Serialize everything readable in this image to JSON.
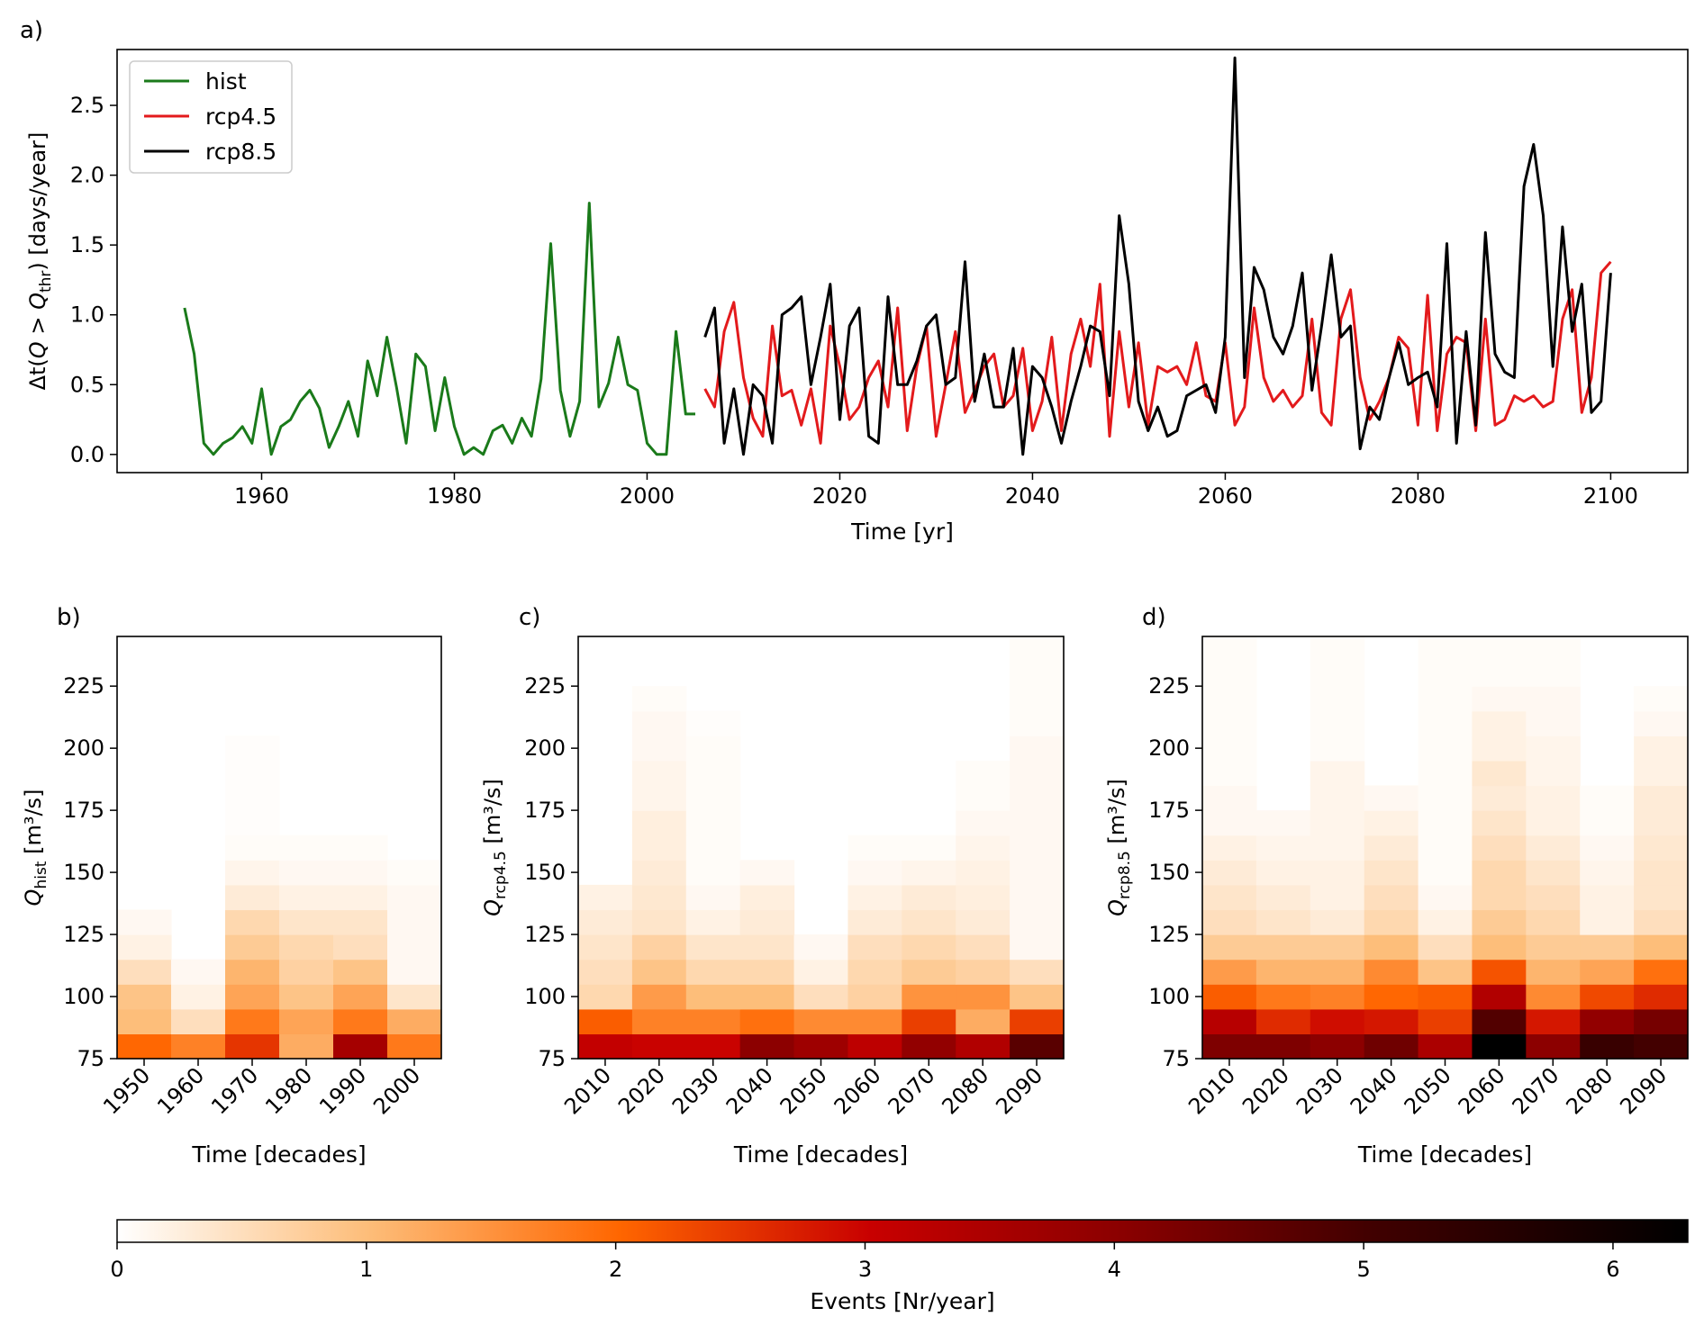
{
  "panel_labels": {
    "a": "a)",
    "b": "b)",
    "c": "c)",
    "d": "d)"
  },
  "line_chart": {
    "ylabel": "Δt(Q > Q_thr) [days/year]",
    "xlabel": "Time [yr]",
    "x_ticks": [
      1960,
      1980,
      2000,
      2020,
      2040,
      2060,
      2080,
      2100
    ],
    "y_ticks": [
      "0.0",
      "0.5",
      "1.0",
      "1.5",
      "2.0",
      "2.5"
    ]
  },
  "heatmaps": {
    "ylabel_main": "Q",
    "ylabel_unit": "[m³/s]",
    "y_ticks": [
      "75",
      "100",
      "125",
      "150",
      "175",
      "200",
      "225"
    ],
    "xlabel": "Time [decades]"
  },
  "colorbar": {
    "label": "Events [Nr/year]",
    "ticks": [
      "0",
      "1",
      "2",
      "3",
      "4",
      "5",
      "6"
    ],
    "max": 6.3
  },
  "colors": {
    "hist": "#1a7a1a",
    "rcp45": "#e31a1c",
    "rcp85": "#000000"
  },
  "chart_data": [
    {
      "type": "line",
      "xlabel": "Time [yr]",
      "ylabel": "Δt(Q > Q_thr) [days/year]",
      "xlim": [
        1945,
        2108
      ],
      "ylim": [
        -0.13,
        2.9
      ],
      "legend_position": "top-left",
      "series": [
        {
          "name": "hist",
          "x": [
            1952,
            1953,
            1954,
            1955,
            1956,
            1957,
            1958,
            1959,
            1960,
            1961,
            1962,
            1963,
            1964,
            1965,
            1966,
            1967,
            1968,
            1969,
            1970,
            1971,
            1972,
            1973,
            1974,
            1975,
            1976,
            1977,
            1978,
            1979,
            1980,
            1981,
            1982,
            1983,
            1984,
            1985,
            1986,
            1987,
            1988,
            1989,
            1990,
            1991,
            1992,
            1993,
            1994,
            1995,
            1996,
            1997,
            1998,
            1999,
            2000,
            2001,
            2002,
            2003,
            2004,
            2005
          ],
          "y": [
            1.05,
            0.72,
            0.08,
            0.0,
            0.08,
            0.12,
            0.2,
            0.08,
            0.47,
            0.0,
            0.2,
            0.25,
            0.38,
            0.46,
            0.33,
            0.05,
            0.2,
            0.38,
            0.13,
            0.67,
            0.42,
            0.84,
            0.48,
            0.08,
            0.72,
            0.63,
            0.17,
            0.55,
            0.2,
            0.0,
            0.05,
            0.0,
            0.17,
            0.21,
            0.08,
            0.26,
            0.13,
            0.54,
            1.51,
            0.46,
            0.13,
            0.38,
            1.8,
            0.34,
            0.51,
            0.84,
            0.5,
            0.46,
            0.08,
            0.0,
            0.0,
            0.88,
            0.29,
            0.29
          ]
        },
        {
          "name": "rcp4.5",
          "x": [
            2006,
            2007,
            2008,
            2009,
            2010,
            2011,
            2012,
            2013,
            2014,
            2015,
            2016,
            2017,
            2018,
            2019,
            2020,
            2021,
            2022,
            2023,
            2024,
            2025,
            2026,
            2027,
            2028,
            2029,
            2030,
            2031,
            2032,
            2033,
            2034,
            2035,
            2036,
            2037,
            2038,
            2039,
            2040,
            2041,
            2042,
            2043,
            2044,
            2045,
            2046,
            2047,
            2048,
            2049,
            2050,
            2051,
            2052,
            2053,
            2054,
            2055,
            2056,
            2057,
            2058,
            2059,
            2060,
            2061,
            2062,
            2063,
            2064,
            2065,
            2066,
            2067,
            2068,
            2069,
            2070,
            2071,
            2072,
            2073,
            2074,
            2075,
            2076,
            2077,
            2078,
            2079,
            2080,
            2081,
            2082,
            2083,
            2084,
            2085,
            2086,
            2087,
            2088,
            2089,
            2090,
            2091,
            2092,
            2093,
            2094,
            2095,
            2096,
            2097,
            2098,
            2099,
            2100
          ],
          "y": [
            0.47,
            0.34,
            0.88,
            1.09,
            0.55,
            0.26,
            0.13,
            0.92,
            0.42,
            0.46,
            0.21,
            0.47,
            0.08,
            0.92,
            0.63,
            0.25,
            0.34,
            0.55,
            0.67,
            0.34,
            1.05,
            0.17,
            0.63,
            0.92,
            0.13,
            0.5,
            0.88,
            0.3,
            0.46,
            0.63,
            0.72,
            0.34,
            0.42,
            0.76,
            0.17,
            0.38,
            0.84,
            0.17,
            0.72,
            0.97,
            0.63,
            1.22,
            0.13,
            0.88,
            0.34,
            0.8,
            0.21,
            0.63,
            0.59,
            0.63,
            0.5,
            0.8,
            0.42,
            0.38,
            0.8,
            0.21,
            0.34,
            1.05,
            0.55,
            0.38,
            0.46,
            0.34,
            0.42,
            0.97,
            0.3,
            0.21,
            0.97,
            1.18,
            0.55,
            0.25,
            0.38,
            0.55,
            0.84,
            0.76,
            0.21,
            1.14,
            0.17,
            0.72,
            0.84,
            0.8,
            0.17,
            0.97,
            0.21,
            0.25,
            0.42,
            0.38,
            0.42,
            0.34,
            0.38,
            0.97,
            1.18,
            0.3,
            0.55,
            1.3,
            1.38
          ]
        },
        {
          "name": "rcp8.5",
          "x": [
            2006,
            2007,
            2008,
            2009,
            2010,
            2011,
            2012,
            2013,
            2014,
            2015,
            2016,
            2017,
            2018,
            2019,
            2020,
            2021,
            2022,
            2023,
            2024,
            2025,
            2026,
            2027,
            2028,
            2029,
            2030,
            2031,
            2032,
            2033,
            2034,
            2035,
            2036,
            2037,
            2038,
            2039,
            2040,
            2041,
            2042,
            2043,
            2044,
            2045,
            2046,
            2047,
            2048,
            2049,
            2050,
            2051,
            2052,
            2053,
            2054,
            2055,
            2056,
            2057,
            2058,
            2059,
            2060,
            2061,
            2062,
            2063,
            2064,
            2065,
            2066,
            2067,
            2068,
            2069,
            2070,
            2071,
            2072,
            2073,
            2074,
            2075,
            2076,
            2077,
            2078,
            2079,
            2080,
            2081,
            2082,
            2083,
            2084,
            2085,
            2086,
            2087,
            2088,
            2089,
            2090,
            2091,
            2092,
            2093,
            2094,
            2095,
            2096,
            2097,
            2098,
            2099,
            2100
          ],
          "y": [
            0.84,
            1.05,
            0.08,
            0.47,
            0.0,
            0.5,
            0.42,
            0.08,
            1.0,
            1.05,
            1.13,
            0.5,
            0.84,
            1.22,
            0.25,
            0.92,
            1.05,
            0.13,
            0.08,
            1.13,
            0.5,
            0.5,
            0.67,
            0.92,
            1.0,
            0.5,
            0.55,
            1.38,
            0.38,
            0.72,
            0.34,
            0.34,
            0.76,
            0.0,
            0.63,
            0.55,
            0.34,
            0.08,
            0.38,
            0.63,
            0.92,
            0.88,
            0.42,
            1.71,
            1.22,
            0.38,
            0.17,
            0.34,
            0.13,
            0.17,
            0.42,
            0.46,
            0.5,
            0.3,
            0.84,
            2.84,
            0.55,
            1.34,
            1.18,
            0.84,
            0.72,
            0.92,
            1.3,
            0.46,
            0.92,
            1.43,
            0.84,
            0.92,
            0.04,
            0.34,
            0.25,
            0.55,
            0.8,
            0.5,
            0.55,
            0.59,
            0.34,
            1.51,
            0.08,
            0.88,
            0.21,
            1.59,
            0.72,
            0.59,
            0.55,
            1.92,
            2.22,
            1.71,
            0.63,
            1.63,
            0.88,
            1.22,
            0.3,
            0.38,
            1.3
          ]
        }
      ]
    },
    {
      "type": "heatmap",
      "ylabel": "Q_hist [m³/s]",
      "xlabel": "Time [decades]",
      "x": [
        "1950",
        "1960",
        "1970",
        "1980",
        "1990",
        "2000"
      ],
      "y_bins": [
        75,
        85,
        95,
        105,
        115,
        125,
        135,
        145,
        155,
        165,
        175,
        185,
        195,
        205,
        215,
        225,
        235,
        245
      ],
      "ylim": [
        75,
        245
      ],
      "values": [
        [
          2.0,
          1.7,
          2.5,
          1.2,
          3.6,
          1.8
        ],
        [
          1.0,
          0.5,
          1.8,
          1.3,
          1.8,
          1.2
        ],
        [
          0.9,
          0.2,
          1.3,
          0.9,
          1.3,
          0.4
        ],
        [
          0.5,
          0.1,
          1.1,
          0.7,
          0.9,
          0.1
        ],
        [
          0.2,
          0,
          0.8,
          0.6,
          0.5,
          0.1
        ],
        [
          0.1,
          0,
          0.6,
          0.4,
          0.4,
          0.1
        ],
        [
          0,
          0,
          0.3,
          0.2,
          0.2,
          0.1
        ],
        [
          0,
          0,
          0.15,
          0.1,
          0.1,
          0.05
        ],
        [
          0,
          0,
          0.05,
          0.05,
          0.05,
          0
        ],
        [
          0,
          0,
          0.03,
          0,
          0,
          0
        ],
        [
          0,
          0,
          0.03,
          0,
          0,
          0
        ],
        [
          0,
          0,
          0.03,
          0,
          0,
          0
        ],
        [
          0,
          0,
          0.03,
          0,
          0,
          0
        ],
        [
          0,
          0,
          0,
          0,
          0,
          0
        ],
        [
          0,
          0,
          0,
          0,
          0,
          0
        ],
        [
          0,
          0,
          0,
          0,
          0,
          0
        ],
        [
          0,
          0,
          0,
          0,
          0,
          0
        ]
      ]
    },
    {
      "type": "heatmap",
      "ylabel": "Q_rcp4.5 [m³/s]",
      "xlabel": "Time [decades]",
      "x": [
        "2010",
        "2020",
        "2030",
        "2040",
        "2050",
        "2060",
        "2070",
        "2080",
        "2090"
      ],
      "y_bins": [
        75,
        85,
        95,
        105,
        115,
        125,
        135,
        145,
        155,
        165,
        175,
        185,
        195,
        205,
        215,
        225,
        235,
        245
      ],
      "ylim": [
        75,
        245
      ],
      "values": [
        [
          3.1,
          3.0,
          3.0,
          4.0,
          3.7,
          3.2,
          3.9,
          3.4,
          4.7
        ],
        [
          2.1,
          1.7,
          1.7,
          1.9,
          1.6,
          1.6,
          2.4,
          1.2,
          2.4
        ],
        [
          0.6,
          1.4,
          1.0,
          1.0,
          0.5,
          0.7,
          1.5,
          1.5,
          0.9
        ],
        [
          0.5,
          0.9,
          0.6,
          0.6,
          0.2,
          0.6,
          0.8,
          0.7,
          0.5
        ],
        [
          0.4,
          0.7,
          0.4,
          0.4,
          0.1,
          0.5,
          0.6,
          0.5,
          0.1
        ],
        [
          0.3,
          0.4,
          0.2,
          0.3,
          0,
          0.3,
          0.4,
          0.3,
          0.1
        ],
        [
          0.2,
          0.35,
          0.1,
          0.25,
          0,
          0.2,
          0.3,
          0.25,
          0.1
        ],
        [
          0,
          0.3,
          0.05,
          0.1,
          0,
          0.1,
          0.15,
          0.2,
          0.1
        ],
        [
          0,
          0.25,
          0.05,
          0,
          0,
          0.05,
          0.05,
          0.15,
          0.1
        ],
        [
          0,
          0.25,
          0.05,
          0,
          0,
          0,
          0,
          0.1,
          0.1
        ],
        [
          0,
          0.15,
          0.05,
          0,
          0,
          0,
          0,
          0.05,
          0.1
        ],
        [
          0,
          0.15,
          0.05,
          0,
          0,
          0,
          0,
          0.05,
          0.1
        ],
        [
          0,
          0.1,
          0.05,
          0,
          0,
          0,
          0,
          0,
          0.1
        ],
        [
          0,
          0.1,
          0.03,
          0,
          0,
          0,
          0,
          0,
          0.05
        ],
        [
          0,
          0.05,
          0,
          0,
          0,
          0,
          0,
          0,
          0.05
        ],
        [
          0,
          0,
          0,
          0,
          0,
          0,
          0,
          0,
          0.05
        ],
        [
          0,
          0,
          0,
          0,
          0,
          0,
          0,
          0,
          0.05
        ]
      ]
    },
    {
      "type": "heatmap",
      "ylabel": "Q_rcp8.5 [m³/s]",
      "xlabel": "Time [decades]",
      "x": [
        "2010",
        "2020",
        "2030",
        "2040",
        "2050",
        "2060",
        "2070",
        "2080",
        "2090"
      ],
      "y_bins": [
        75,
        85,
        95,
        105,
        115,
        125,
        135,
        145,
        155,
        165,
        175,
        185,
        195,
        205,
        215,
        225,
        235,
        245
      ],
      "ylim": [
        75,
        245
      ],
      "values": [
        [
          4.2,
          4.2,
          4.0,
          4.4,
          3.5,
          6.3,
          4.0,
          5.2,
          5.0
        ],
        [
          3.3,
          2.6,
          2.9,
          2.8,
          2.4,
          4.8,
          2.8,
          3.9,
          4.3
        ],
        [
          2.1,
          1.8,
          1.7,
          2.0,
          2.1,
          3.4,
          1.6,
          2.3,
          2.6
        ],
        [
          1.4,
          1.1,
          1.1,
          1.6,
          0.9,
          2.2,
          1.1,
          1.3,
          1.9
        ],
        [
          0.8,
          0.8,
          0.8,
          1.0,
          0.5,
          1.0,
          0.8,
          0.8,
          1.0
        ],
        [
          0.5,
          0.4,
          0.3,
          0.6,
          0.2,
          0.8,
          0.6,
          0.2,
          0.5
        ],
        [
          0.4,
          0.3,
          0.2,
          0.5,
          0.1,
          0.6,
          0.5,
          0.2,
          0.4
        ],
        [
          0.3,
          0.2,
          0.2,
          0.4,
          0.05,
          0.6,
          0.4,
          0.15,
          0.4
        ],
        [
          0.2,
          0.15,
          0.15,
          0.3,
          0.05,
          0.5,
          0.3,
          0.1,
          0.35
        ],
        [
          0.1,
          0.1,
          0.15,
          0.2,
          0.05,
          0.4,
          0.2,
          0.05,
          0.3
        ],
        [
          0.1,
          0,
          0.15,
          0.1,
          0.05,
          0.3,
          0.2,
          0.05,
          0.3
        ],
        [
          0.05,
          0,
          0.15,
          0,
          0.05,
          0.35,
          0.15,
          0,
          0.2
        ],
        [
          0.05,
          0,
          0.05,
          0,
          0.05,
          0.2,
          0.15,
          0,
          0.2
        ],
        [
          0.05,
          0,
          0.05,
          0,
          0.05,
          0.2,
          0.1,
          0,
          0.1
        ],
        [
          0.05,
          0,
          0.05,
          0,
          0.05,
          0.1,
          0.1,
          0,
          0.05
        ],
        [
          0.05,
          0,
          0.05,
          0,
          0.05,
          0.05,
          0.05,
          0,
          0
        ],
        [
          0.05,
          0,
          0.05,
          0,
          0.05,
          0.05,
          0.05,
          0,
          0
        ]
      ]
    }
  ]
}
